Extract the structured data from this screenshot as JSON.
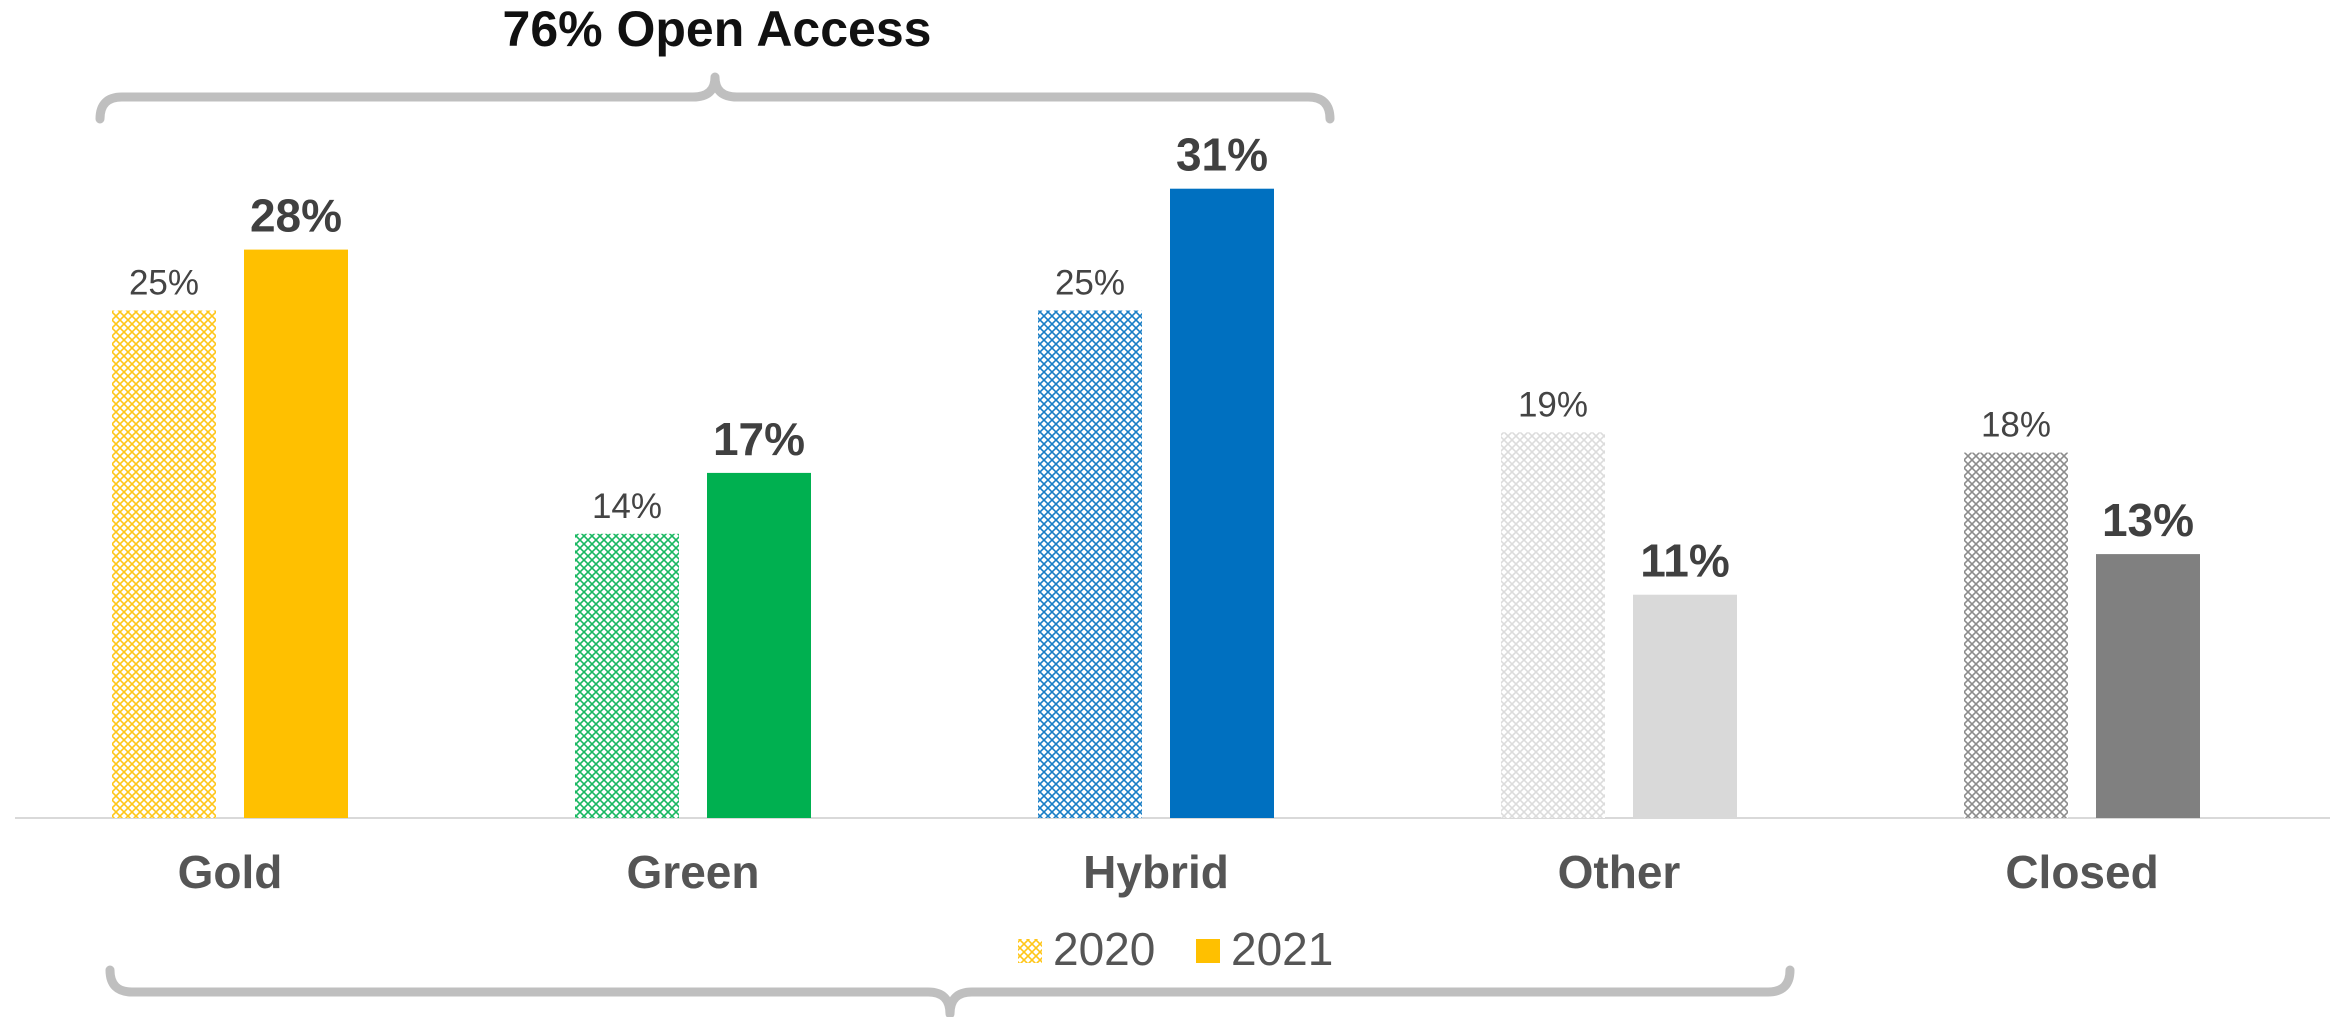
{
  "chart_data": {
    "type": "bar",
    "title": "76% Open Access",
    "categories": [
      "Gold",
      "Green",
      "Hybrid",
      "Other",
      "Closed"
    ],
    "series": [
      {
        "name": "2020",
        "values": [
          25,
          14,
          25,
          19,
          18
        ],
        "labels": [
          "25%",
          "14%",
          "25%",
          "19%",
          "18%"
        ],
        "style": "hatched"
      },
      {
        "name": "2021",
        "values": [
          28,
          17,
          31,
          11,
          13
        ],
        "labels": [
          "28%",
          "17%",
          "31%",
          "11%",
          "13%"
        ],
        "style": "solid"
      }
    ],
    "category_colors": [
      "#FFC000",
      "#00B050",
      "#0070C0",
      "#D9D9D9",
      "#808080"
    ],
    "ylim": [
      0,
      35
    ],
    "legend_position": "bottom",
    "legend_color": "#FFC000",
    "brace_color": "#BFBFBF",
    "axis_color": "#D9D9D9",
    "grid": false
  }
}
